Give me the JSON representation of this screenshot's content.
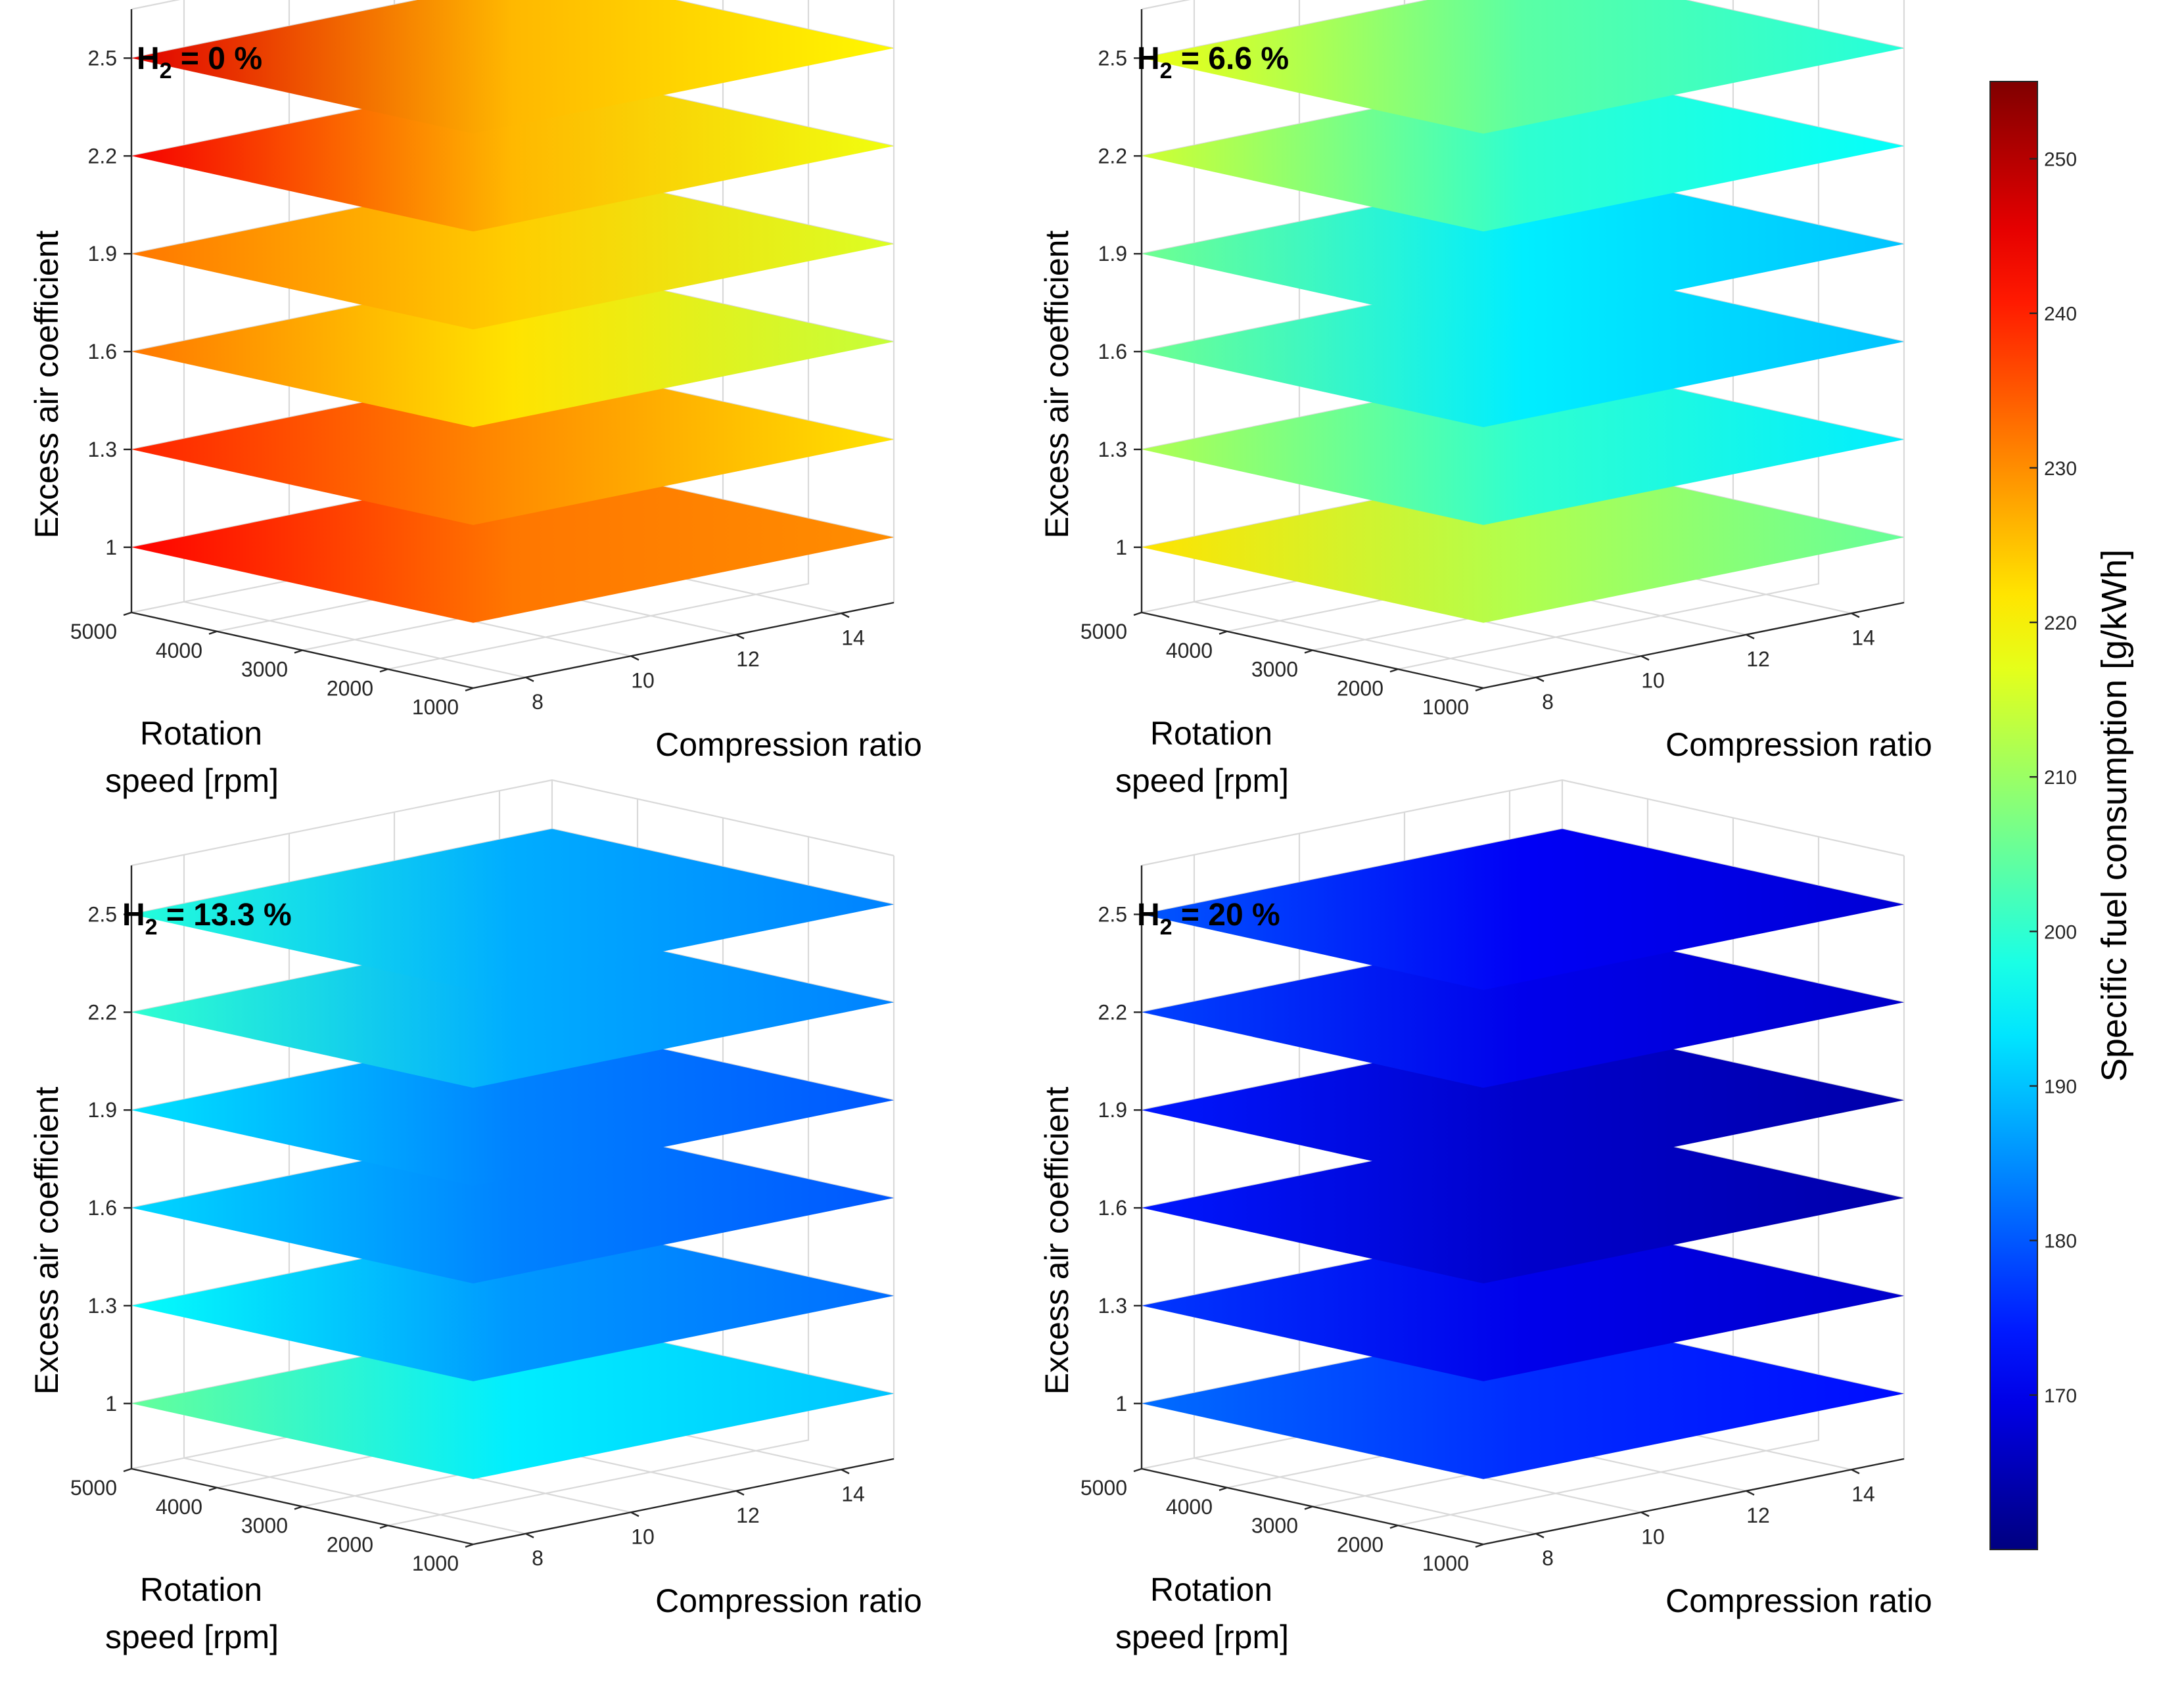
{
  "chart_data": {
    "type": "surface",
    "panels": [
      {
        "title_main": "H",
        "title_sub": "2",
        "title_rest": " = 0 %",
        "xlabel": "Compression ratio",
        "ylabel": [
          "Rotation",
          "speed [rpm]"
        ],
        "zlabel": "Excess air coefficient",
        "x_ticks": [
          "8",
          "10",
          "12",
          "14"
        ],
        "y_ticks": [
          "5000",
          "4000",
          "3000",
          "2000",
          "1000"
        ],
        "z_ticks": [
          "1",
          "1.3",
          "1.6",
          "1.9",
          "2.2",
          "2.5"
        ]
      },
      {
        "title_main": "H",
        "title_sub": "2",
        "title_rest": " = 6.6 %",
        "xlabel": "Compression ratio",
        "ylabel": [
          "Rotation",
          "speed [rpm]"
        ],
        "zlabel": "Excess air coefficient",
        "x_ticks": [
          "8",
          "10",
          "12",
          "14"
        ],
        "y_ticks": [
          "5000",
          "4000",
          "3000",
          "2000",
          "1000"
        ],
        "z_ticks": [
          "1",
          "1.3",
          "1.6",
          "1.9",
          "2.2",
          "2.5"
        ]
      },
      {
        "title_main": "H",
        "title_sub": "2",
        "title_rest": " = 13.3 %",
        "xlabel": "Compression ratio",
        "ylabel": [
          "Rotation",
          "speed [rpm]"
        ],
        "zlabel": "Excess air coefficient",
        "x_ticks": [
          "8",
          "10",
          "12",
          "14"
        ],
        "y_ticks": [
          "5000",
          "4000",
          "3000",
          "2000",
          "1000"
        ],
        "z_ticks": [
          "1",
          "1.3",
          "1.6",
          "1.9",
          "2.2",
          "2.5"
        ]
      },
      {
        "title_main": "H",
        "title_sub": "2",
        "title_rest": " = 20 %",
        "xlabel": "Compression ratio",
        "ylabel": [
          "Rotation",
          "speed [rpm]"
        ],
        "zlabel": "Excess air coefficient",
        "x_ticks": [
          "8",
          "10",
          "12",
          "14"
        ],
        "y_ticks": [
          "5000",
          "4000",
          "3000",
          "2000",
          "1000"
        ],
        "z_ticks": [
          "1",
          "1.3",
          "1.6",
          "1.9",
          "2.2",
          "2.5"
        ]
      }
    ],
    "x_range": [
      7,
      15
    ],
    "y_range": [
      1000,
      5000
    ],
    "z_levels": [
      1,
      1.3,
      1.6,
      1.9,
      2.2,
      2.5
    ],
    "slice_colors_approx": [
      [
        {
          "left": 243,
          "mid": 232,
          "right": 230
        },
        {
          "left": 240,
          "mid": 230,
          "right": 222
        },
        {
          "left": 232,
          "mid": 222,
          "right": 214
        },
        {
          "left": 232,
          "mid": 224,
          "right": 216
        },
        {
          "left": 244,
          "mid": 226,
          "right": 218
        },
        {
          "left": 246,
          "mid": 226,
          "right": 220
        }
      ],
      [
        {
          "left": 222,
          "mid": 212,
          "right": 205
        },
        {
          "left": 212,
          "mid": 200,
          "right": 194
        },
        {
          "left": 206,
          "mid": 194,
          "right": 190
        },
        {
          "left": 206,
          "mid": 194,
          "right": 190
        },
        {
          "left": 215,
          "mid": 200,
          "right": 196
        },
        {
          "left": 218,
          "mid": 204,
          "right": 199
        }
      ],
      [
        {
          "left": 205,
          "mid": 194,
          "right": 190
        },
        {
          "left": 196,
          "mid": 186,
          "right": 182
        },
        {
          "left": 192,
          "mid": 184,
          "right": 180
        },
        {
          "left": 193,
          "mid": 184,
          "right": 180
        },
        {
          "left": 200,
          "mid": 188,
          "right": 184
        },
        {
          "left": 199,
          "mid": 188,
          "right": 184
        }
      ],
      [
        {
          "left": 182,
          "mid": 176,
          "right": 173
        },
        {
          "left": 177,
          "mid": 170,
          "right": 167
        },
        {
          "left": 174,
          "mid": 167,
          "right": 164
        },
        {
          "left": 174,
          "mid": 167,
          "right": 164
        },
        {
          "left": 178,
          "mid": 170,
          "right": 167
        },
        {
          "left": 180,
          "mid": 171,
          "right": 168
        }
      ]
    ],
    "colorbar": {
      "label": "Specific fuel consumption [g/kWh]",
      "range": [
        160,
        255
      ],
      "ticks": [
        "170",
        "180",
        "190",
        "200",
        "210",
        "220",
        "230",
        "240",
        "250"
      ],
      "colormap": "jet"
    },
    "grid": true
  }
}
